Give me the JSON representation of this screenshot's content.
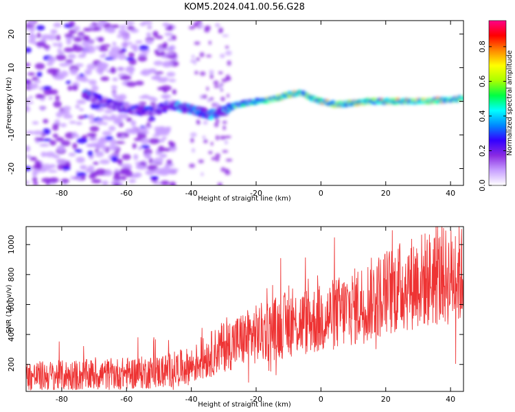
{
  "title": "KOM5.2024.041.00.56.G28",
  "colors": {
    "snr_line": "#ee3333",
    "axis": "#000000",
    "background": "#ffffff"
  },
  "chart_data": [
    {
      "type": "heatmap",
      "xlabel": "Height of straight line (km)",
      "ylabel": "Frequency (Hz)",
      "xlim": [
        -91,
        44
      ],
      "ylim": [
        -25,
        24
      ],
      "xticks": [
        -80,
        -60,
        -40,
        -20,
        0,
        20,
        40
      ],
      "yticks": [
        -20,
        -10,
        0,
        10,
        20
      ],
      "colorbar": {
        "label": "Normalized spectral amplitude",
        "range": [
          0.0,
          0.95
        ],
        "ticks": [
          "0.0",
          "0.2",
          "0.4",
          "0.6",
          "0.8"
        ],
        "colormap": [
          "#ffffff",
          "#c8a0ff",
          "#8a2be2",
          "#3300ff",
          "#0088ff",
          "#00ffff",
          "#00ff44",
          "#aaff00",
          "#ffff00",
          "#ff8800",
          "#ff0000",
          "#ff0088"
        ]
      },
      "ridge": {
        "x": [
          -72,
          -65,
          -58,
          -52,
          -46,
          -42,
          -38,
          -34,
          -30,
          -26,
          -20,
          -15,
          -10,
          -6,
          -3,
          0,
          5,
          10,
          15,
          20,
          30,
          40,
          44
        ],
        "freq": [
          2,
          -1,
          -2.5,
          -3,
          -1,
          -2,
          -3,
          -4,
          -3,
          -1,
          0,
          0.5,
          2,
          2.5,
          1,
          0,
          -1,
          -0.5,
          0,
          0,
          0,
          0.5,
          1
        ]
      },
      "noise_region_x": [
        -91,
        -45
      ]
    },
    {
      "type": "line",
      "xlabel": "Height of straight line (km)",
      "ylabel": "SNR (10 * v/v)",
      "xlim": [
        -91,
        44
      ],
      "ylim": [
        20,
        1120
      ],
      "xticks": [
        -80,
        -60,
        -40,
        -20,
        0,
        20,
        40
      ],
      "yticks": [
        200,
        400,
        600,
        800,
        1000
      ],
      "trend": {
        "x": [
          -91,
          -70,
          -50,
          -40,
          -30,
          -20,
          -10,
          0,
          10,
          20,
          30,
          44
        ],
        "y": [
          120,
          130,
          150,
          190,
          320,
          400,
          470,
          500,
          580,
          680,
          760,
          800
        ]
      }
    }
  ]
}
